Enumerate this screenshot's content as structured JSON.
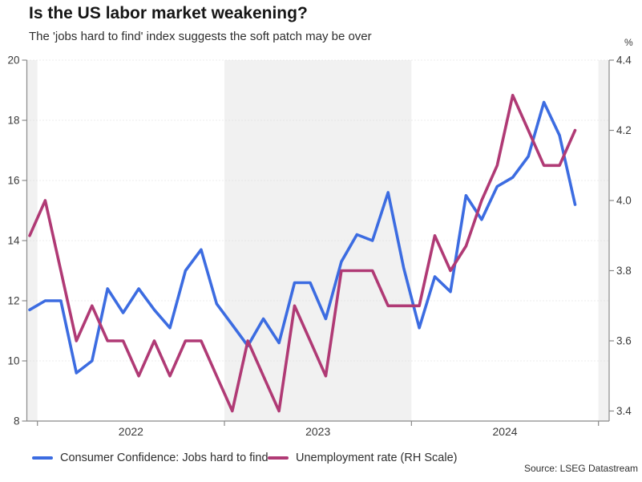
{
  "header": {
    "title": "Is the US labor market weakening?",
    "subtitle": "The 'jobs hard to find' index suggests the soft patch may be over"
  },
  "legend": [
    {
      "label": "Consumer Confidence: Jobs hard to find",
      "color": "#3c6ce1"
    },
    {
      "label": "Unemployment rate (RH Scale)",
      "color": "#b03a75"
    }
  ],
  "footer": {
    "source": "Source: LSEG Datastream"
  },
  "chart_data": {
    "type": "line",
    "title": "Is the US labor market weakening?",
    "subtitle": "The 'jobs hard to find' index suggests the soft patch may be over",
    "x": [
      "2021-12",
      "2022-01",
      "2022-02",
      "2022-03",
      "2022-04",
      "2022-05",
      "2022-06",
      "2022-07",
      "2022-08",
      "2022-09",
      "2022-10",
      "2022-11",
      "2022-12",
      "2023-01",
      "2023-02",
      "2023-03",
      "2023-04",
      "2023-05",
      "2023-06",
      "2023-07",
      "2023-08",
      "2023-09",
      "2023-10",
      "2023-11",
      "2023-12",
      "2024-01",
      "2024-02",
      "2024-03",
      "2024-04",
      "2024-05",
      "2024-06",
      "2024-07",
      "2024-08",
      "2024-09",
      "2024-10",
      "2024-11"
    ],
    "x_tick_labels": [
      "2022",
      "2023",
      "2024"
    ],
    "series": [
      {
        "name": "Consumer Confidence: Jobs hard to find",
        "axis": "left",
        "color": "#3c6ce1",
        "values": [
          11.7,
          12.0,
          12.0,
          9.6,
          10.0,
          12.4,
          11.6,
          12.4,
          11.7,
          11.1,
          13.0,
          13.7,
          11.9,
          11.2,
          10.5,
          11.4,
          10.6,
          12.6,
          12.6,
          11.4,
          13.3,
          14.2,
          14.0,
          15.6,
          13.1,
          11.1,
          12.8,
          12.3,
          15.5,
          14.7,
          15.8,
          16.1,
          16.8,
          18.6,
          17.5,
          15.2
        ]
      },
      {
        "name": "Unemployment rate (RH Scale)",
        "axis": "right",
        "color": "#b03a75",
        "values": [
          3.9,
          4.0,
          3.8,
          3.6,
          3.7,
          3.6,
          3.6,
          3.5,
          3.6,
          3.5,
          3.6,
          3.6,
          3.5,
          3.4,
          3.6,
          3.5,
          3.4,
          3.7,
          3.6,
          3.5,
          3.8,
          3.8,
          3.8,
          3.7,
          3.7,
          3.7,
          3.9,
          3.8,
          3.87,
          4.0,
          4.1,
          4.3,
          4.2,
          4.1,
          4.1,
          4.2
        ]
      }
    ],
    "left_axis": {
      "ticks": [
        8,
        10,
        12,
        14,
        16,
        18,
        20
      ],
      "tick_labels": [
        "8",
        "10",
        "12",
        "14",
        "16",
        "18",
        "20"
      ],
      "range": [
        8,
        20
      ]
    },
    "right_axis": {
      "label": "%",
      "ticks": [
        3.4,
        3.6,
        3.8,
        4.0,
        4.2,
        4.4
      ],
      "tick_labels": [
        "3.4",
        "3.6",
        "3.8",
        "4.0",
        "4.2",
        "4.4"
      ],
      "range": [
        3.371,
        4.4
      ]
    },
    "shaded_year_bands": [
      2021,
      2023,
      2025
    ],
    "band_color": "#f1f1f1",
    "grid": "dotted horizontal gridlines at left-axis ticks",
    "legend_position": "bottom"
  }
}
